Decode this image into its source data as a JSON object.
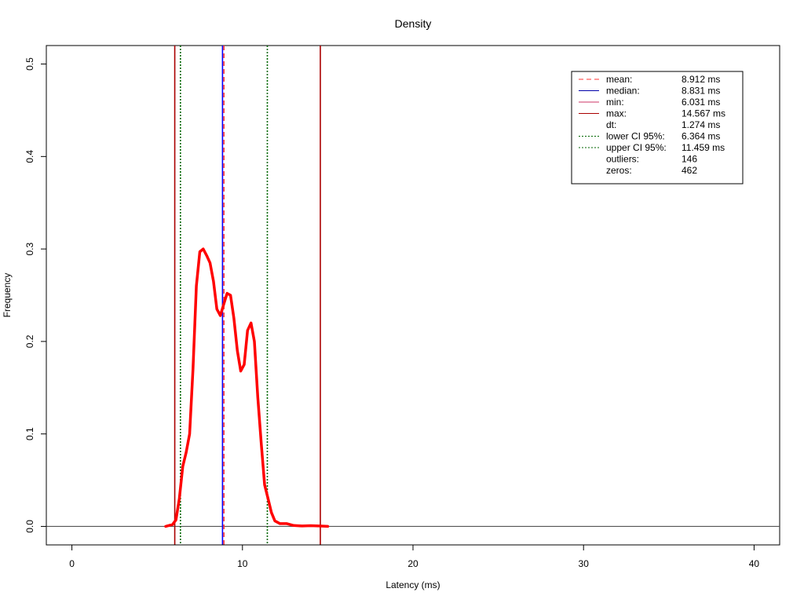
{
  "chart_data": {
    "type": "line",
    "title": "Density",
    "xlabel": "Latency (ms)",
    "ylabel": "Frequency",
    "xlim": [
      -1.5,
      41.5
    ],
    "ylim": [
      -0.02,
      0.52
    ],
    "x_ticks": [
      0,
      10,
      20,
      30,
      40
    ],
    "y_ticks": [
      0.0,
      0.1,
      0.2,
      0.3,
      0.4,
      0.5
    ],
    "y_tick_labels": [
      "0.0",
      "0.1",
      "0.2",
      "0.3",
      "0.4",
      "0.5"
    ],
    "grid": false,
    "legend_position": "top-right",
    "baseline_y": 0,
    "series": [
      {
        "color": "#ff0000",
        "x": [
          5.5,
          5.9,
          6.1,
          6.3,
          6.5,
          6.7,
          6.9,
          7.1,
          7.3,
          7.5,
          7.7,
          7.9,
          8.1,
          8.3,
          8.5,
          8.7,
          8.9,
          9.1,
          9.3,
          9.5,
          9.7,
          9.9,
          10.1,
          10.3,
          10.5,
          10.7,
          10.9,
          11.1,
          11.3,
          11.5,
          11.7,
          11.9,
          12.2,
          12.6,
          13.0,
          13.5,
          14.0,
          14.5,
          15.0
        ],
        "y": [
          0.0,
          0.002,
          0.007,
          0.03,
          0.065,
          0.08,
          0.1,
          0.17,
          0.26,
          0.297,
          0.3,
          0.293,
          0.285,
          0.265,
          0.235,
          0.228,
          0.24,
          0.252,
          0.25,
          0.225,
          0.19,
          0.168,
          0.175,
          0.212,
          0.22,
          0.2,
          0.14,
          0.09,
          0.045,
          0.03,
          0.015,
          0.006,
          0.003,
          0.003,
          0.001,
          0.0005,
          0.0008,
          0.0005,
          0.0
        ]
      }
    ],
    "vlines": [
      {
        "x": 6.031,
        "color": "#aa0000",
        "style": "solid"
      },
      {
        "x": 14.567,
        "color": "#aa0000",
        "style": "solid"
      },
      {
        "x": 6.364,
        "color": "#006600",
        "style": "dotted"
      },
      {
        "x": 11.459,
        "color": "#006600",
        "style": "dotted"
      },
      {
        "x": 8.831,
        "color": "#0000ff",
        "style": "solid"
      },
      {
        "x": 8.912,
        "color": "#ff3333",
        "style": "dashed"
      }
    ],
    "legend": [
      {
        "label": "mean:",
        "value": "8.912 ms",
        "color": "#ff3333",
        "style": "dashed"
      },
      {
        "label": "median:",
        "value": "8.831 ms",
        "color": "#0000aa",
        "style": "solid"
      },
      {
        "label": "min:",
        "value": "6.031 ms",
        "color": "#cc3366",
        "style": "solid"
      },
      {
        "label": "max:",
        "value": "14.567 ms",
        "color": "#aa0000",
        "style": "solid"
      },
      {
        "label": "dt:",
        "value": "1.274 ms",
        "color": "",
        "style": "none"
      },
      {
        "label": "lower CI 95%:",
        "value": "6.364 ms",
        "color": "#006600",
        "style": "dotted"
      },
      {
        "label": "upper CI 95%:",
        "value": "11.459 ms",
        "color": "#006600",
        "style": "dotted"
      },
      {
        "label": "outliers:",
        "value": "146",
        "color": "",
        "style": "none"
      },
      {
        "label": "zeros:",
        "value": "462",
        "color": "",
        "style": "none"
      }
    ]
  }
}
